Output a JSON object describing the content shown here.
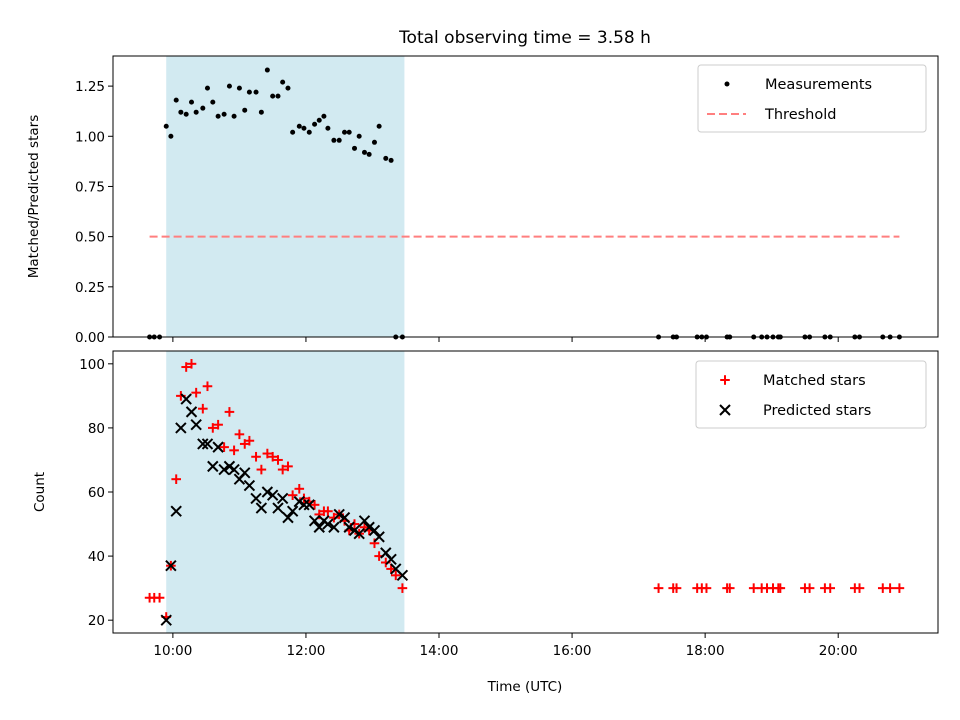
{
  "chart_data": [
    {
      "type": "scatter",
      "title": "Total observing time = 3.58 h",
      "xlabel": "",
      "ylabel": "Matched/Predicted stars",
      "xlim": [
        9.1,
        21.5
      ],
      "ylim": [
        0,
        1.4
      ],
      "yticks": [
        0.0,
        0.25,
        0.5,
        0.75,
        1.0,
        1.25
      ],
      "ytick_labels": [
        "0.00",
        "0.25",
        "0.50",
        "0.75",
        "1.00",
        "1.25"
      ],
      "shaded_span": {
        "x0": 9.9,
        "x1": 13.48,
        "color": "#add8e6"
      },
      "legend": [
        {
          "label": "Measurements",
          "marker": "dot",
          "color": "#000000"
        },
        {
          "label": "Threshold",
          "marker": "dashed-line",
          "color": "#ff7f7f"
        }
      ],
      "threshold": {
        "value": 0.5,
        "x_range": [
          9.65,
          20.92
        ]
      },
      "series": [
        {
          "name": "Measurements",
          "x": [
            9.65,
            9.72,
            9.8,
            9.9,
            9.97,
            10.05,
            10.12,
            10.2,
            10.28,
            10.35,
            10.45,
            10.52,
            10.6,
            10.68,
            10.77,
            10.85,
            10.92,
            11.0,
            11.08,
            11.15,
            11.25,
            11.33,
            11.42,
            11.5,
            11.58,
            11.65,
            11.73,
            11.8,
            11.9,
            11.97,
            12.05,
            12.13,
            12.2,
            12.27,
            12.33,
            12.42,
            12.5,
            12.58,
            12.65,
            12.73,
            12.8,
            12.88,
            12.95,
            13.03,
            13.1,
            13.2,
            13.28,
            13.35,
            13.45,
            17.3,
            17.52,
            17.57,
            17.88,
            17.95,
            18.02,
            18.33,
            18.37,
            18.73,
            18.85,
            18.93,
            19.02,
            19.1,
            19.13,
            19.5,
            19.57,
            19.8,
            19.88,
            20.25,
            20.32,
            20.67,
            20.78,
            20.92
          ],
          "y": [
            0,
            0,
            0,
            1.05,
            1.0,
            1.18,
            1.12,
            1.11,
            1.17,
            1.12,
            1.14,
            1.24,
            1.17,
            1.1,
            1.11,
            1.25,
            1.1,
            1.24,
            1.13,
            1.22,
            1.22,
            1.12,
            1.33,
            1.2,
            1.2,
            1.27,
            1.24,
            1.02,
            1.05,
            1.04,
            1.02,
            1.06,
            1.08,
            1.1,
            1.04,
            0.98,
            0.98,
            1.02,
            1.02,
            0.94,
            1.0,
            0.92,
            0.91,
            0.97,
            1.05,
            0.89,
            0.88,
            0,
            0,
            0,
            0,
            0,
            0,
            0,
            0,
            0,
            0,
            0,
            0,
            0,
            0,
            0,
            0,
            0,
            0,
            0,
            0,
            0,
            0,
            0,
            0,
            0
          ]
        }
      ]
    },
    {
      "type": "scatter",
      "title": "",
      "xlabel": "Time (UTC)",
      "ylabel": "Count",
      "xlim": [
        9.1,
        21.5
      ],
      "ylim": [
        16,
        104
      ],
      "yticks": [
        20,
        40,
        60,
        80,
        100
      ],
      "ytick_labels": [
        "20",
        "40",
        "60",
        "80",
        "100"
      ],
      "xticks": [
        10,
        12,
        14,
        16,
        18,
        20
      ],
      "xtick_labels": [
        "10:00",
        "12:00",
        "14:00",
        "16:00",
        "18:00",
        "20:00"
      ],
      "shaded_span": {
        "x0": 9.9,
        "x1": 13.48,
        "color": "#add8e6"
      },
      "legend": [
        {
          "label": "Matched stars",
          "marker": "plus",
          "color": "#ff0000"
        },
        {
          "label": "Predicted stars",
          "marker": "x",
          "color": "#000000"
        }
      ],
      "series": [
        {
          "name": "Matched stars",
          "color": "#ff0000",
          "x": [
            9.65,
            9.72,
            9.8,
            9.9,
            9.97,
            10.05,
            10.12,
            10.2,
            10.28,
            10.35,
            10.45,
            10.52,
            10.6,
            10.68,
            10.77,
            10.85,
            10.92,
            11.0,
            11.08,
            11.15,
            11.25,
            11.33,
            11.42,
            11.5,
            11.58,
            11.65,
            11.73,
            11.8,
            11.9,
            11.97,
            12.05,
            12.13,
            12.2,
            12.27,
            12.33,
            12.42,
            12.5,
            12.58,
            12.65,
            12.73,
            12.8,
            12.88,
            12.95,
            13.03,
            13.1,
            13.2,
            13.28,
            13.35,
            13.45,
            17.3,
            17.52,
            17.57,
            17.88,
            17.95,
            18.02,
            18.33,
            18.37,
            18.73,
            18.85,
            18.93,
            19.02,
            19.1,
            19.13,
            19.5,
            19.57,
            19.8,
            19.88,
            20.25,
            20.32,
            20.67,
            20.78,
            20.92
          ],
          "y": [
            27,
            27,
            27,
            21,
            37,
            64,
            90,
            99,
            100,
            91,
            86,
            93,
            80,
            81,
            74,
            85,
            73,
            78,
            75,
            76,
            71,
            67,
            72,
            71,
            70,
            67,
            68,
            59,
            61,
            58,
            57,
            56,
            53,
            54,
            54,
            52,
            53,
            51,
            48,
            50,
            47,
            49,
            48,
            44,
            40,
            38,
            36,
            34,
            30,
            30,
            30,
            30,
            30,
            30,
            30,
            30,
            30,
            30,
            30,
            30,
            30,
            30,
            30,
            30,
            30,
            30,
            30,
            30,
            30,
            30,
            30,
            30
          ]
        },
        {
          "name": "Predicted stars",
          "color": "#000000",
          "x": [
            9.9,
            9.97,
            10.05,
            10.12,
            10.2,
            10.28,
            10.35,
            10.45,
            10.52,
            10.6,
            10.68,
            10.77,
            10.85,
            10.92,
            11.0,
            11.08,
            11.15,
            11.25,
            11.33,
            11.42,
            11.5,
            11.58,
            11.65,
            11.73,
            11.8,
            11.9,
            11.97,
            12.05,
            12.13,
            12.2,
            12.27,
            12.33,
            12.42,
            12.5,
            12.58,
            12.65,
            12.73,
            12.8,
            12.88,
            12.95,
            13.03,
            13.1,
            13.2,
            13.28,
            13.35,
            13.45
          ],
          "y": [
            20,
            37,
            54,
            80,
            89,
            85,
            81,
            75,
            75,
            68,
            74,
            67,
            68,
            67,
            64,
            66,
            62,
            58,
            55,
            60,
            59,
            55,
            58,
            52,
            54,
            57,
            56,
            56,
            51,
            49,
            51,
            50,
            49,
            53,
            52,
            49,
            48,
            47,
            51,
            49,
            48,
            46,
            41,
            39,
            36,
            34
          ]
        }
      ]
    }
  ]
}
